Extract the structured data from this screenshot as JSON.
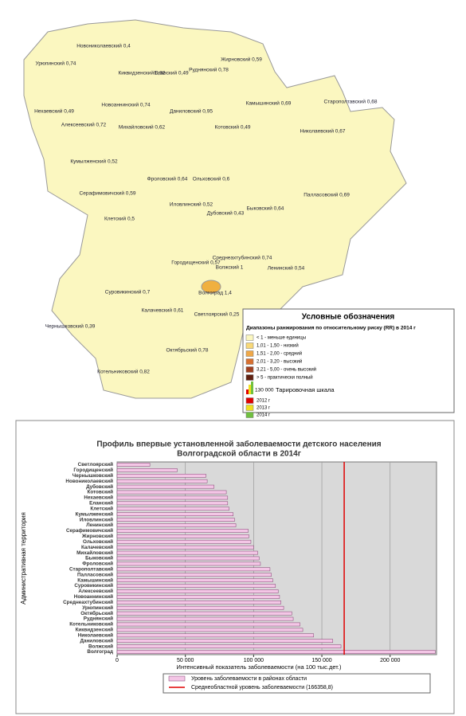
{
  "map": {
    "labels": [
      "Урюпинский 0,74",
      "Новониколаевский 0,4",
      "Киквидзенский 0,82",
      "Еланский 0,49",
      "Руднянский 0,78",
      "Жирновский 0,59",
      "Нехаевский 0,49",
      "Новоаннинский 0,74",
      "Алексеевский 0,72",
      "Михайловский 0,62",
      "Даниловский 0,95",
      "Котовский 0,49",
      "Камышинский 0,69",
      "Старополтавский 0,68",
      "Николаевский 0,67",
      "Кумылженский 0,52",
      "Фроловский 0,64",
      "Ольховский 0,6",
      "Серафимовичский 0,59",
      "Палласовский 0,69",
      "Иловлинский 0,52",
      "Дубовский 0,43",
      "Быковский 0,64",
      "Клетский 0,5",
      "Городищенский 0,57",
      "Среднеахтубинский 0,74",
      "Волжский 1",
      "Ленинский 0,54",
      "Суровикинский 0,7",
      "Волгоград 1,4",
      "Калачевский 0,61",
      "Светлоярский 0,25",
      "Чернышковский 0,39",
      "Октябрьский 0,78",
      "Котельниковский 0,82"
    ],
    "legend": {
      "title": "Условные обозначения",
      "subtitle": "Диапазоны ранжирования по относительному риску (RR) в 2014 г",
      "ranges": [
        {
          "label": "< 1 - меньше единицы",
          "color": "#fbf7c0"
        },
        {
          "label": "1,01 - 1,50 - низкий",
          "color": "#f8d878"
        },
        {
          "label": "1,51 - 2,00 - средний",
          "color": "#f0a848"
        },
        {
          "label": "2,01 - 3,20 - высокий",
          "color": "#d87030"
        },
        {
          "label": "3,21 - 5,00 - очень высокий",
          "color": "#a04020"
        },
        {
          "label": "> 5 - практически полный",
          "color": "#602010"
        }
      ],
      "scale_value": "130 000",
      "scale_label": "Тарировочная шкала",
      "years": [
        {
          "label": "2012 г",
          "color": "#e00000"
        },
        {
          "label": "2013 г",
          "color": "#f0e020"
        },
        {
          "label": "2014 г",
          "color": "#70c040"
        }
      ]
    }
  },
  "chart_data": {
    "type": "hbar",
    "title": [
      "Профиль впервые установленной заболеваемости детского населения",
      "Волгоградской области в 2014г"
    ],
    "x_label": "Интенсивный показатель заболеваемости (на 100 тыс.дет.)",
    "y_label": "Административная территория",
    "categories": [
      "Светлоярский",
      "Городищенский",
      "Чернышковский",
      "Новониколаевский",
      "Дубовский",
      "Котовский",
      "Нехаевский",
      "Еланский",
      "Клетский",
      "Кумылженский",
      "Иловлинский",
      "Ленинский",
      "Серафимовичский",
      "Жирновский",
      "Ольховский",
      "Калачевский",
      "Михайловский",
      "Быковский",
      "Фроловский",
      "Старополтавский",
      "Палласовский",
      "Камышинский",
      "Суровикинский",
      "Алексеевский",
      "Новоаннинский",
      "Среднеахтубинский",
      "Урюпинский",
      "Октябрьский",
      "Руднянский",
      "Котельниковский",
      "Киквидзенский",
      "Николаевский",
      "Даниловский",
      "Волжский",
      "Волгоград"
    ],
    "series": [
      {
        "name": "Уровень заболеваемости в районах области",
        "color": "#f4c6e6",
        "values": [
          24000,
          44000,
          65000,
          66000,
          71000,
          80000,
          81000,
          81000,
          82000,
          85000,
          86000,
          87000,
          96000,
          96500,
          98000,
          100000,
          103000,
          104000,
          105000,
          112000,
          113000,
          114000,
          116000,
          118000,
          119000,
          120000,
          122000,
          128000,
          129000,
          134000,
          136000,
          144000,
          158000,
          164000,
          233000
        ]
      }
    ],
    "reference_line": {
      "name": "Среднеобластной уровень заболеваемости (166358,8)",
      "value": 166358.8,
      "color": "#e00000"
    },
    "xlim": [
      0,
      234000
    ],
    "xticks": [
      0,
      {
        "value": 50000,
        "label": "50 000"
      },
      {
        "value": 100000,
        "label": "100 000"
      },
      {
        "value": 150000,
        "label": "150 000"
      },
      {
        "value": 200000,
        "label": "200 000"
      }
    ],
    "grid": true
  }
}
